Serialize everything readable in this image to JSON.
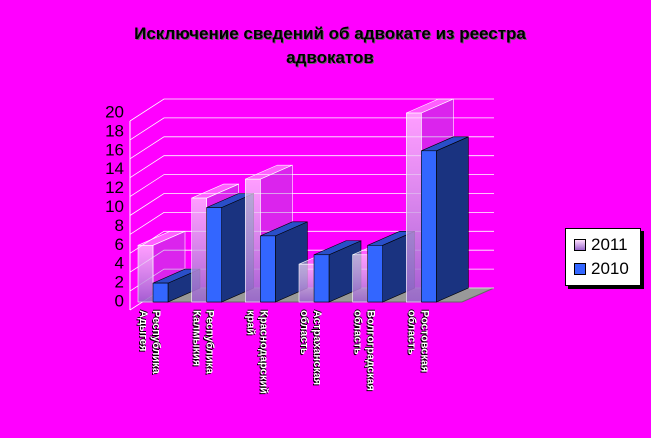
{
  "chart_data": {
    "type": "bar3d",
    "title": "Исключение сведений об адвокате из реестра адвокатов",
    "categories": [
      "Республика Адыгея",
      "Республика Калмыкия",
      "Краснодарский край",
      "Астраханская область",
      "Волгоградская область",
      "Ростовская область"
    ],
    "series": [
      {
        "name": "2011",
        "color": "#9966cc",
        "values": [
          6,
          11,
          13,
          4,
          5,
          20
        ]
      },
      {
        "name": "2010",
        "color": "#3366ff",
        "values": [
          2,
          10,
          7,
          5,
          6,
          16
        ]
      }
    ],
    "ylim": [
      0,
      20
    ],
    "yticks": [
      0,
      2,
      4,
      6,
      8,
      10,
      12,
      14,
      16,
      18,
      20
    ],
    "grid": true,
    "legend": "right"
  }
}
